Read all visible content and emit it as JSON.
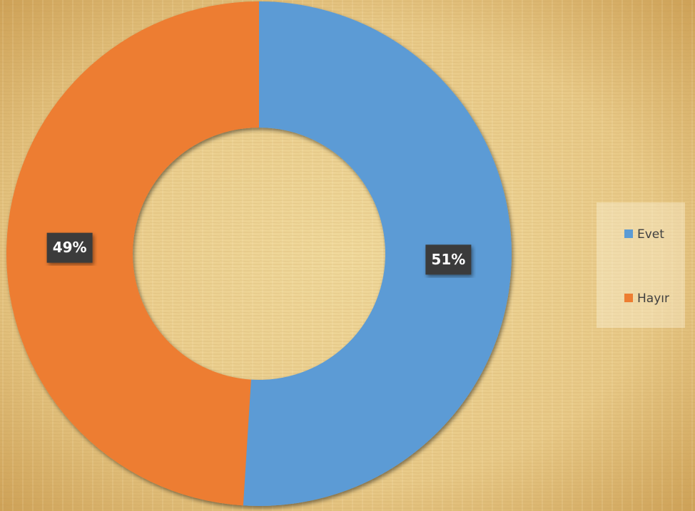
{
  "chart_data": {
    "type": "donut",
    "categories": [
      "Evet",
      "Hayır"
    ],
    "values": [
      51,
      49
    ],
    "value_labels": [
      "51%",
      "49%"
    ],
    "colors": [
      "#5b9bd5",
      "#ed7d31"
    ],
    "legend": "right"
  }
}
